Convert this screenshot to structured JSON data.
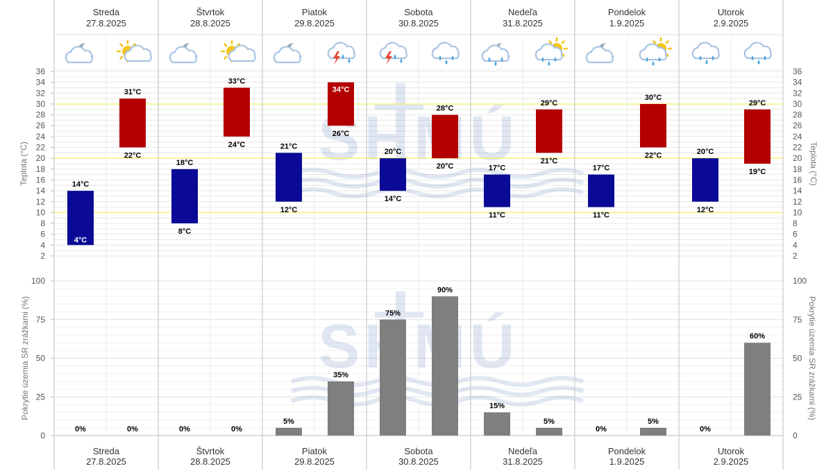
{
  "chart_data": [
    {
      "type": "bar",
      "title": "",
      "ylabel_left": "Teplota (°C)",
      "ylabel_right": "Teplota (°C)",
      "ylim": [
        2,
        36
      ],
      "yticks": [
        2,
        4,
        6,
        8,
        10,
        12,
        14,
        16,
        18,
        20,
        22,
        24,
        26,
        28,
        30,
        32,
        34,
        36
      ],
      "highlight_lines": [
        10,
        20,
        30
      ],
      "grid": true,
      "unit": "°C",
      "days": [
        {
          "name": "Streda",
          "date": "27.8.2025",
          "icons": [
            "night-cloudy-icon",
            "partly-sunny-icon"
          ],
          "night": [
            4,
            14
          ],
          "day": [
            22,
            31
          ]
        },
        {
          "name": "Štvrtok",
          "date": "28.8.2025",
          "icons": [
            "night-cloudy-icon",
            "partly-sunny-icon"
          ],
          "night": [
            8,
            18
          ],
          "day": [
            24,
            33
          ]
        },
        {
          "name": "Piatok",
          "date": "29.8.2025",
          "icons": [
            "night-cloudy-icon",
            "thunderstorm-icon"
          ],
          "night": [
            12,
            21
          ],
          "day": [
            26,
            34
          ]
        },
        {
          "name": "Sobota",
          "date": "30.8.2025",
          "icons": [
            "thunderstorm-icon",
            "rain-icon"
          ],
          "night": [
            14,
            20
          ],
          "day": [
            20,
            28
          ]
        },
        {
          "name": "Nedeľa",
          "date": "31.8.2025",
          "icons": [
            "night-rain-icon",
            "sun-rain-icon"
          ],
          "night": [
            11,
            17
          ],
          "day": [
            21,
            29
          ]
        },
        {
          "name": "Pondelok",
          "date": "1.9.2025",
          "icons": [
            "night-cloudy-icon",
            "sun-rain-icon"
          ],
          "night": [
            11,
            17
          ],
          "day": [
            22,
            30
          ]
        },
        {
          "name": "Utorok",
          "date": "2.9.2025",
          "icons": [
            "rain-icon",
            "rain-icon"
          ],
          "night": [
            12,
            20
          ],
          "day": [
            19,
            29
          ]
        }
      ],
      "series": [
        {
          "name": "night",
          "color": "#0a0a96"
        },
        {
          "name": "day",
          "color": "#b40000"
        }
      ]
    },
    {
      "type": "bar",
      "ylabel_left": "Pokrytie územia SR zrážkami (%)",
      "ylabel_right": "Pokrytie územia SR zrážkami (%)",
      "ylim": [
        0,
        100
      ],
      "yticks": [
        0,
        25,
        50,
        75,
        100
      ],
      "unit": "%",
      "color": "#7f7f7f",
      "values": [
        [
          0,
          0
        ],
        [
          0,
          0
        ],
        [
          5,
          35
        ],
        [
          75,
          90
        ],
        [
          15,
          5
        ],
        [
          0,
          5
        ],
        [
          0,
          60
        ]
      ]
    }
  ],
  "colors": {
    "highlight": "#f5f07a",
    "grid": "#e6e6e6",
    "divider": "#c8c8c8"
  },
  "logo": "SHMÚ"
}
